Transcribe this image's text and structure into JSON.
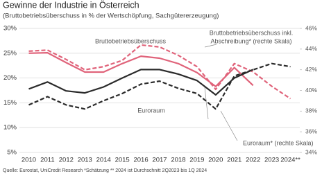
{
  "chart_data": {
    "type": "line",
    "title": "Gewinne der Industrie in Österreich",
    "subtitle": "(Bruttobetriebsüberschuss in % der Wertschöpfung, Sachgütererzeugung)",
    "source": "Quelle: Eurostat, UniCredit Research *Schätzung ** 2024 ist Durchschnitt 2Q2023 bis 1Q 2024",
    "categories": [
      "2010",
      "2011",
      "2012",
      "2013",
      "2014",
      "2015",
      "2016",
      "2017",
      "2018",
      "2019",
      "2020",
      "2021",
      "2022",
      "2023",
      "2024**"
    ],
    "ylim": [
      5,
      30
    ],
    "yticks": [
      {
        "value": 5,
        "label": "5%"
      },
      {
        "value": 10,
        "label": "10%"
      },
      {
        "value": 15,
        "label": "15%"
      },
      {
        "value": 20,
        "label": "20%"
      },
      {
        "value": 25,
        "label": "25%"
      },
      {
        "value": 30,
        "label": "30%"
      }
    ],
    "y2lim": [
      34,
      46
    ],
    "y2ticks": [
      {
        "value": 34,
        "label": "34%"
      },
      {
        "value": 36,
        "label": "36%"
      },
      {
        "value": 38,
        "label": "38%"
      },
      {
        "value": 40,
        "label": "40%"
      },
      {
        "value": 42,
        "label": "42%"
      },
      {
        "value": 44,
        "label": "44%"
      },
      {
        "value": 46,
        "label": "46%"
      }
    ],
    "grid": true,
    "series": [
      {
        "color": "#e0637a",
        "dash": false,
        "values": [
          25.0,
          25.1,
          23.1,
          21.2,
          21.2,
          22.9,
          24.4,
          24.0,
          22.9,
          21.1,
          18.3,
          22.1,
          18.5,
          null,
          null
        ]
      },
      {
        "color": "#2b2b2b",
        "dash": false,
        "values": [
          17.8,
          19.2,
          17.4,
          17.0,
          18.2,
          20.0,
          21.7,
          21.7,
          20.8,
          19.5,
          16.6,
          20.0,
          21.7,
          null,
          null
        ]
      },
      {
        "color": "#e0637a",
        "dash": true,
        "axis": "y2",
        "values": [
          43.8,
          43.9,
          43.0,
          42.0,
          42.3,
          42.9,
          44.4,
          44.2,
          43.4,
          42.3,
          40.1,
          42.6,
          41.8,
          40.4,
          39.2
        ]
      },
      {
        "color": "#2b2b2b",
        "dash": true,
        "axis": "y2",
        "values": [
          38.6,
          39.4,
          38.6,
          38.2,
          39.0,
          39.7,
          40.6,
          40.9,
          40.2,
          39.7,
          38.2,
          41.4,
          42.0,
          42.6,
          42.3
        ]
      }
    ],
    "annotations": [
      "Bruttobetriebsüberschuss",
      "Bruttobetriebsüberschuss  inkl.",
      "Abschreibung* (rechte Skala)",
      "Euroraum",
      "Euroraum* (rechte Skala)"
    ]
  }
}
